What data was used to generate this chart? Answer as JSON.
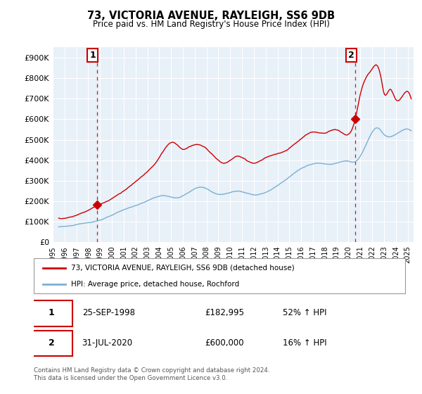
{
  "title": "73, VICTORIA AVENUE, RAYLEIGH, SS6 9DB",
  "subtitle": "Price paid vs. HM Land Registry's House Price Index (HPI)",
  "ylabel_ticks": [
    "£0",
    "£100K",
    "£200K",
    "£300K",
    "£400K",
    "£500K",
    "£600K",
    "£700K",
    "£800K",
    "£900K"
  ],
  "ytick_values": [
    0,
    100000,
    200000,
    300000,
    400000,
    500000,
    600000,
    700000,
    800000,
    900000
  ],
  "ylim": [
    0,
    950000
  ],
  "xlim_start": 1995.3,
  "xlim_end": 2025.5,
  "red_line_color": "#cc0000",
  "blue_line_color": "#7ab0d4",
  "dashed_line_color": "#cc0000",
  "marker1_date": 1998.73,
  "marker1_value": 182995,
  "marker2_date": 2020.58,
  "marker2_value": 600000,
  "annotation1_label": "1",
  "annotation2_label": "2",
  "legend_line1": "73, VICTORIA AVENUE, RAYLEIGH, SS6 9DB (detached house)",
  "legend_line2": "HPI: Average price, detached house, Rochford",
  "table_row1": [
    "1",
    "25-SEP-1998",
    "£182,995",
    "52% ↑ HPI"
  ],
  "table_row2": [
    "2",
    "31-JUL-2020",
    "£600,000",
    "16% ↑ HPI"
  ],
  "footer": "Contains HM Land Registry data © Crown copyright and database right 2024.\nThis data is licensed under the Open Government Licence v3.0.",
  "background_color": "#ffffff",
  "plot_bg_color": "#e8f0f8",
  "grid_color": "#ffffff"
}
